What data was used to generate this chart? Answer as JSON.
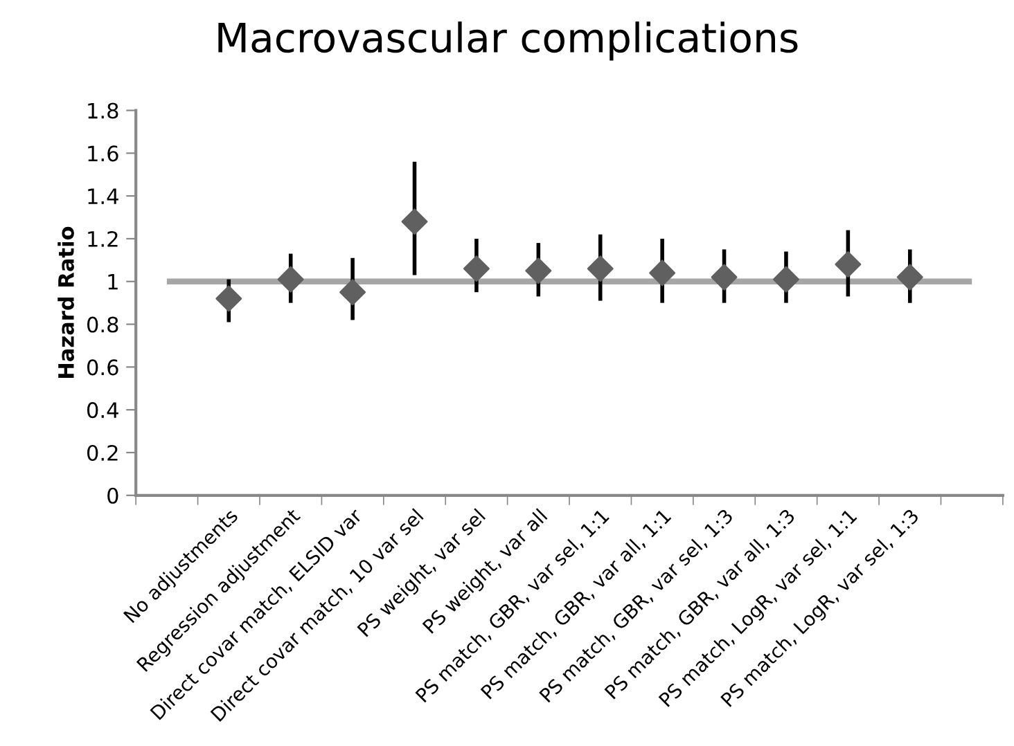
{
  "chart_data": {
    "type": "scatter",
    "title": "Macrovascular complications",
    "ylabel": "Hazard Ratio",
    "categories": [
      null,
      "No adjustments",
      "Regression adjustment",
      "Direct covar match, ELSID var",
      "Direct covar match, 10 var sel",
      "PS weight, var sel",
      "PS weight, var all",
      "PS match, GBR, var sel, 1:1",
      "PS match, GBR, var all, 1:1",
      "PS match, GBR, var sel, 1:3",
      "PS match, GBR, var all, 1:3",
      "PS match, LogR, var sel, 1:1",
      "PS match, LogR, var sel, 1:3",
      null
    ],
    "series": [
      {
        "color": "#606060",
        "values": [
          null,
          0.92,
          1.01,
          0.95,
          1.28,
          1.06,
          1.05,
          1.06,
          1.04,
          1.02,
          1.01,
          1.08,
          1.02,
          null
        ],
        "errors": [
          null,
          [
            0.81,
            1.01
          ],
          [
            0.9,
            1.13
          ],
          [
            0.82,
            1.11
          ],
          [
            1.03,
            1.56
          ],
          [
            0.95,
            1.2
          ],
          [
            0.93,
            1.18
          ],
          [
            0.91,
            1.22
          ],
          [
            0.9,
            1.2
          ],
          [
            0.9,
            1.15
          ],
          [
            0.9,
            1.14
          ],
          [
            0.93,
            1.24
          ],
          [
            0.9,
            1.15
          ],
          null
        ]
      }
    ],
    "marker": "diamond",
    "ylim": [
      0,
      1.8
    ],
    "yticks": [
      0,
      0.2,
      0.4,
      0.6,
      0.8,
      1,
      1.2,
      1.4,
      1.6,
      1.8
    ],
    "ref_lines": [
      {
        "axis": "y",
        "value": 1,
        "color": "#a6a6a6"
      }
    ],
    "grid": false,
    "legend": false
  }
}
